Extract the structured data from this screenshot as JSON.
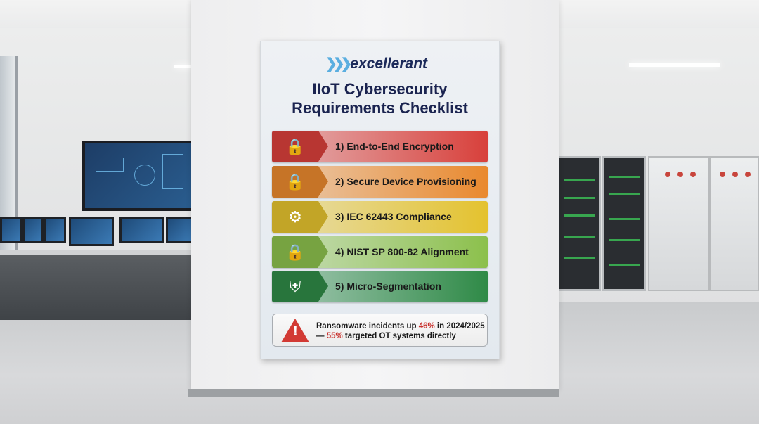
{
  "poster": {
    "logo": "excellerant",
    "title_line1": "IIoT Cybersecurity",
    "title_line2": "Requirements Checklist",
    "items": [
      {
        "label": "1) End-to-End Encryption",
        "icon": "shield-lock-icon",
        "color": "#d8403b"
      },
      {
        "label": "2) Secure Device Provisioning",
        "icon": "padlock-icon",
        "color": "#e9892e"
      },
      {
        "label": "3) IEC 62443 Compliance",
        "icon": "gear-shield-icon",
        "color": "#e4c22e"
      },
      {
        "label": "4) NIST SP 800-82 Alignment",
        "icon": "circuit-lock-icon",
        "color": "#8cc04c"
      },
      {
        "label": "5) Micro-Segmentation",
        "icon": "shield-network-icon",
        "color": "#2f8a47"
      }
    ],
    "alert": {
      "icon": "warning-triangle-icon",
      "line1_a": "Ransomware incidents up ",
      "line1_b": "46%",
      "line1_c": " in 2024/2025",
      "line2_a": "— ",
      "line2_b": "55%",
      "line2_c": " targeted OT systems directly"
    }
  }
}
